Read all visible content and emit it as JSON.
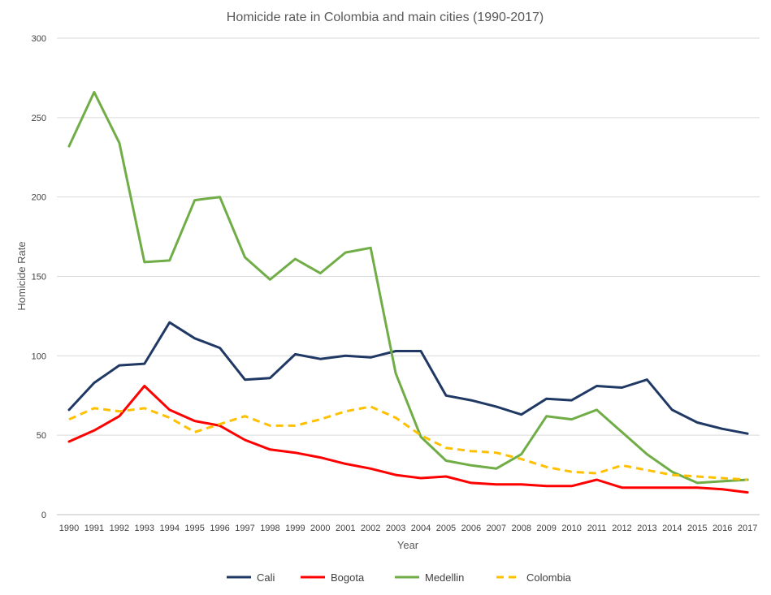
{
  "chart_data": {
    "type": "line",
    "title": "Homicide rate in Colombia and main cities (1990-2017)",
    "xlabel": "Year",
    "ylabel": "Homicide Rate",
    "ylim": [
      0,
      300
    ],
    "yticks": [
      "0",
      "50",
      "100",
      "150",
      "200",
      "250",
      "300"
    ],
    "grid": true,
    "legend_position": "bottom",
    "categories": [
      "1990",
      "1991",
      "1992",
      "1993",
      "1994",
      "1995",
      "1996",
      "1997",
      "1998",
      "1999",
      "2000",
      "2001",
      "2002",
      "2003",
      "2004",
      "2005",
      "2006",
      "2007",
      "2008",
      "2009",
      "2010",
      "2011",
      "2012",
      "2013",
      "2014",
      "2015",
      "2016",
      "2017"
    ],
    "series": [
      {
        "name": "Cali",
        "color": "#1f3864",
        "dash": false,
        "values": [
          66,
          83,
          94,
          95,
          121,
          111,
          105,
          85,
          86,
          101,
          98,
          100,
          99,
          103,
          103,
          75,
          72,
          68,
          63,
          73,
          72,
          81,
          80,
          85,
          66,
          58,
          54,
          51
        ]
      },
      {
        "name": "Bogota",
        "color": "#ff0000",
        "dash": false,
        "values": [
          46,
          53,
          62,
          81,
          66,
          59,
          56,
          47,
          41,
          39,
          36,
          32,
          29,
          25,
          23,
          24,
          20,
          19,
          19,
          18,
          18,
          22,
          17,
          17,
          17,
          17,
          16,
          14
        ]
      },
      {
        "name": "Medellin",
        "color": "#70ad47",
        "dash": false,
        "values": [
          232,
          266,
          234,
          159,
          160,
          198,
          200,
          162,
          148,
          161,
          152,
          165,
          168,
          89,
          49,
          34,
          31,
          29,
          38,
          62,
          60,
          66,
          52,
          38,
          27,
          20,
          21,
          22
        ]
      },
      {
        "name": "Colombia",
        "color": "#ffc000",
        "dash": true,
        "values": [
          60,
          67,
          65,
          67,
          61,
          52,
          57,
          62,
          56,
          56,
          60,
          65,
          68,
          61,
          50,
          42,
          40,
          39,
          35,
          30,
          27,
          26,
          31,
          28,
          25,
          24,
          23,
          22
        ]
      }
    ]
  }
}
